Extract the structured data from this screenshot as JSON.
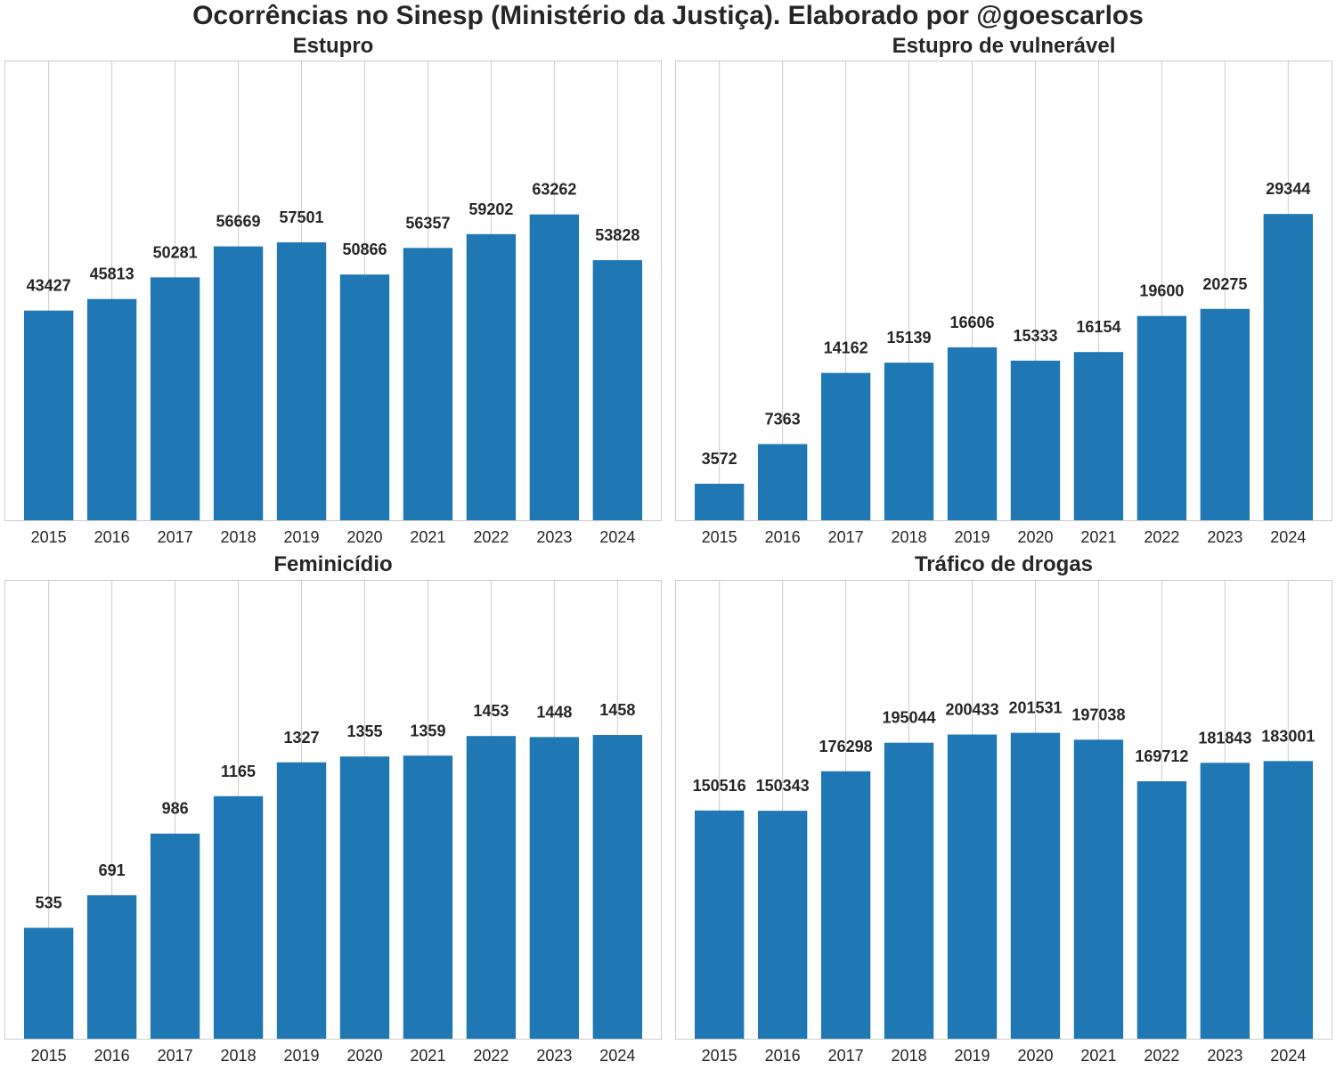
{
  "title": "Ocorrências no Sinesp (Ministério da Justiça). Elaborado por @goescarlos",
  "bar_color": "#1f77b4",
  "chart_data": [
    {
      "type": "bar",
      "title": "Estupro",
      "categories": [
        "2015",
        "2016",
        "2017",
        "2018",
        "2019",
        "2020",
        "2021",
        "2022",
        "2023",
        "2024"
      ],
      "values": [
        43427,
        45813,
        50281,
        56669,
        57501,
        50866,
        56357,
        59202,
        63262,
        53828
      ],
      "ylim": [
        0,
        95000
      ],
      "grid": "vertical",
      "ylabel": "",
      "xlabel": ""
    },
    {
      "type": "bar",
      "title": "Estupro de vulnerável",
      "categories": [
        "2015",
        "2016",
        "2017",
        "2018",
        "2019",
        "2020",
        "2021",
        "2022",
        "2023",
        "2024"
      ],
      "values": [
        3572,
        7363,
        14162,
        15139,
        16606,
        15333,
        16154,
        19600,
        20275,
        29344
      ],
      "ylim": [
        0,
        44000
      ],
      "grid": "vertical",
      "ylabel": "",
      "xlabel": ""
    },
    {
      "type": "bar",
      "title": "Feminicídio",
      "categories": [
        "2015",
        "2016",
        "2017",
        "2018",
        "2019",
        "2020",
        "2021",
        "2022",
        "2023",
        "2024"
      ],
      "values": [
        535,
        691,
        986,
        1165,
        1327,
        1355,
        1359,
        1453,
        1448,
        1458
      ],
      "ylim": [
        0,
        2200
      ],
      "grid": "vertical",
      "ylabel": "",
      "xlabel": ""
    },
    {
      "type": "bar",
      "title": "Tráfico de drogas",
      "categories": [
        "2015",
        "2016",
        "2017",
        "2018",
        "2019",
        "2020",
        "2021",
        "2022",
        "2023",
        "2024"
      ],
      "values": [
        150516,
        150343,
        176298,
        195044,
        200433,
        201531,
        197038,
        169712,
        181843,
        183001
      ],
      "ylim": [
        0,
        302000
      ],
      "grid": "vertical",
      "ylabel": "",
      "xlabel": ""
    }
  ]
}
